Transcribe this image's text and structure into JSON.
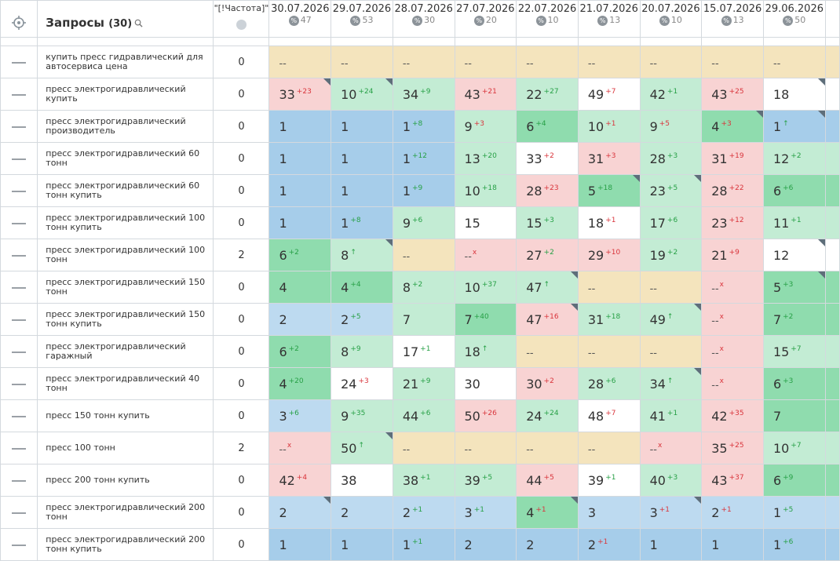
{
  "header": {
    "title": "Запросы",
    "count": "(30)",
    "freq_label": "\"[!Частота]\"",
    "dates": [
      {
        "date": "30.07.2026",
        "count": "47"
      },
      {
        "date": "29.07.2026",
        "count": "53"
      },
      {
        "date": "28.07.2026",
        "count": "30"
      },
      {
        "date": "27.07.2026",
        "count": "20"
      },
      {
        "date": "22.07.2026",
        "count": "10"
      },
      {
        "date": "21.07.2026",
        "count": "13"
      },
      {
        "date": "20.07.2026",
        "count": "10"
      },
      {
        "date": "15.07.2026",
        "count": "13"
      },
      {
        "date": "29.06.2026",
        "count": "50"
      }
    ],
    "percent_symbol": "%",
    "icons": {
      "target": "crosshair-icon",
      "search": "search-icon",
      "globe": "globe-icon",
      "percent": "percent-icon"
    }
  },
  "colors": {
    "blue": "#a6cdea",
    "light_blue": "#bddaf0",
    "green": "#8fdcae",
    "light_green": "#c3ecd4",
    "red": "#f8d3d3",
    "yellow": "#f4e4bd",
    "white": "#ffffff",
    "up": "#27a046",
    "down": "#d9353c"
  },
  "no_data": "--",
  "rows": [
    {
      "query": "купить пресс гидравлический для автосервиса цена",
      "freq": "0",
      "cells": [
        [
          "--",
          "",
          "",
          "yellow",
          0
        ],
        [
          "--",
          "",
          "",
          "yellow",
          0
        ],
        [
          "--",
          "",
          "",
          "yellow",
          0
        ],
        [
          "--",
          "",
          "",
          "yellow",
          0
        ],
        [
          "--",
          "",
          "",
          "yellow",
          0
        ],
        [
          "--",
          "",
          "",
          "yellow",
          0
        ],
        [
          "--",
          "",
          "",
          "yellow",
          0
        ],
        [
          "--",
          "",
          "",
          "yellow",
          0
        ],
        [
          "--",
          "",
          "",
          "yellow",
          0
        ]
      ]
    },
    {
      "query": "пресс электрогидравлический купить",
      "freq": "0",
      "cells": [
        [
          "33",
          "+23",
          "down",
          "red",
          1
        ],
        [
          "10",
          "+24",
          "up",
          "lgreen",
          1
        ],
        [
          "34",
          "+9",
          "up",
          "lgreen",
          0
        ],
        [
          "43",
          "+21",
          "down",
          "red",
          0
        ],
        [
          "22",
          "+27",
          "up",
          "lgreen",
          0
        ],
        [
          "49",
          "+7",
          "down",
          "white",
          0
        ],
        [
          "42",
          "+1",
          "up",
          "lgreen",
          0
        ],
        [
          "43",
          "+25",
          "down",
          "red",
          0
        ],
        [
          "18",
          "",
          "",
          "white",
          1
        ]
      ]
    },
    {
      "query": "пресс электрогидравлический производитель",
      "freq": "0",
      "cells": [
        [
          "1",
          "",
          "",
          "blue",
          0
        ],
        [
          "1",
          "",
          "",
          "blue",
          0
        ],
        [
          "1",
          "+8",
          "up",
          "blue",
          0
        ],
        [
          "9",
          "+3",
          "down",
          "lgreen",
          0
        ],
        [
          "6",
          "+4",
          "up",
          "green",
          0
        ],
        [
          "10",
          "+1",
          "down",
          "lgreen",
          0
        ],
        [
          "9",
          "+5",
          "down",
          "lgreen",
          0
        ],
        [
          "4",
          "+3",
          "down",
          "green",
          1
        ],
        [
          "1",
          "↑",
          "up",
          "blue",
          1
        ]
      ]
    },
    {
      "query": "пресс электрогидравлический 60 тонн",
      "freq": "0",
      "cells": [
        [
          "1",
          "",
          "",
          "blue",
          0
        ],
        [
          "1",
          "",
          "",
          "blue",
          0
        ],
        [
          "1",
          "+12",
          "up",
          "blue",
          0
        ],
        [
          "13",
          "+20",
          "up",
          "lgreen",
          0
        ],
        [
          "33",
          "+2",
          "down",
          "white",
          0
        ],
        [
          "31",
          "+3",
          "down",
          "red",
          0
        ],
        [
          "28",
          "+3",
          "up",
          "lgreen",
          0
        ],
        [
          "31",
          "+19",
          "down",
          "red",
          0
        ],
        [
          "12",
          "+2",
          "up",
          "lgreen",
          0
        ]
      ]
    },
    {
      "query": "пресс электрогидравлический 60 тонн купить",
      "freq": "0",
      "cells": [
        [
          "1",
          "",
          "",
          "blue",
          0
        ],
        [
          "1",
          "",
          "",
          "blue",
          0
        ],
        [
          "1",
          "+9",
          "up",
          "blue",
          0
        ],
        [
          "10",
          "+18",
          "up",
          "lgreen",
          0
        ],
        [
          "28",
          "+23",
          "down",
          "red",
          0
        ],
        [
          "5",
          "+18",
          "up",
          "green",
          1
        ],
        [
          "23",
          "+5",
          "up",
          "lgreen",
          1
        ],
        [
          "28",
          "+22",
          "down",
          "red",
          0
        ],
        [
          "6",
          "+6",
          "up",
          "green",
          0
        ]
      ]
    },
    {
      "query": "пресс электрогидравлический 100 тонн купить",
      "freq": "0",
      "cells": [
        [
          "1",
          "",
          "",
          "blue",
          0
        ],
        [
          "1",
          "+8",
          "up",
          "blue",
          0
        ],
        [
          "9",
          "+6",
          "up",
          "lgreen",
          0
        ],
        [
          "15",
          "",
          "",
          "white",
          0
        ],
        [
          "15",
          "+3",
          "up",
          "lgreen",
          0
        ],
        [
          "18",
          "+1",
          "down",
          "white",
          0
        ],
        [
          "17",
          "+6",
          "up",
          "lgreen",
          0
        ],
        [
          "23",
          "+12",
          "down",
          "red",
          0
        ],
        [
          "11",
          "+1",
          "up",
          "lgreen",
          0
        ]
      ]
    },
    {
      "query": "пресс электрогидравлический 100 тонн",
      "freq": "2",
      "cells": [
        [
          "6",
          "+2",
          "up",
          "green",
          0
        ],
        [
          "8",
          "↑",
          "up",
          "lgreen",
          1
        ],
        [
          "--",
          "",
          "",
          "yellow",
          0
        ],
        [
          "--",
          "x",
          "down",
          "red",
          0
        ],
        [
          "27",
          "+2",
          "up",
          "red",
          0
        ],
        [
          "29",
          "+10",
          "down",
          "red",
          0
        ],
        [
          "19",
          "+2",
          "up",
          "lgreen",
          0
        ],
        [
          "21",
          "+9",
          "down",
          "red",
          0
        ],
        [
          "12",
          "",
          "",
          "white",
          1
        ]
      ]
    },
    {
      "query": "пресс электрогидравлический 150 тонн",
      "freq": "0",
      "cells": [
        [
          "4",
          "",
          "",
          "green",
          0
        ],
        [
          "4",
          "+4",
          "up",
          "green",
          0
        ],
        [
          "8",
          "+2",
          "up",
          "lgreen",
          0
        ],
        [
          "10",
          "+37",
          "up",
          "lgreen",
          0
        ],
        [
          "47",
          "↑",
          "up",
          "lgreen",
          1
        ],
        [
          "--",
          "",
          "",
          "yellow",
          0
        ],
        [
          "--",
          "",
          "",
          "yellow",
          0
        ],
        [
          "--",
          "x",
          "down",
          "red",
          0
        ],
        [
          "5",
          "+3",
          "up",
          "green",
          1
        ]
      ]
    },
    {
      "query": "пресс электрогидравлический 150 тонн купить",
      "freq": "0",
      "cells": [
        [
          "2",
          "",
          "",
          "lblue",
          0
        ],
        [
          "2",
          "+5",
          "up",
          "lblue",
          0
        ],
        [
          "7",
          "",
          "",
          "lgreen",
          0
        ],
        [
          "7",
          "+40",
          "up",
          "green",
          0
        ],
        [
          "47",
          "+16",
          "down",
          "red",
          1
        ],
        [
          "31",
          "+18",
          "up",
          "lgreen",
          0
        ],
        [
          "49",
          "↑",
          "up",
          "lgreen",
          1
        ],
        [
          "--",
          "x",
          "down",
          "red",
          0
        ],
        [
          "7",
          "+2",
          "up",
          "green",
          0
        ]
      ]
    },
    {
      "query": "пресс электрогидравлический гаражный",
      "freq": "0",
      "cells": [
        [
          "6",
          "+2",
          "up",
          "green",
          0
        ],
        [
          "8",
          "+9",
          "up",
          "lgreen",
          0
        ],
        [
          "17",
          "+1",
          "up",
          "white",
          0
        ],
        [
          "18",
          "↑",
          "up",
          "lgreen",
          0
        ],
        [
          "--",
          "",
          "",
          "yellow",
          0
        ],
        [
          "--",
          "",
          "",
          "yellow",
          0
        ],
        [
          "--",
          "",
          "",
          "yellow",
          0
        ],
        [
          "--",
          "x",
          "down",
          "red",
          0
        ],
        [
          "15",
          "+7",
          "up",
          "lgreen",
          0
        ]
      ]
    },
    {
      "query": "пресс электрогидравлический 40 тонн",
      "freq": "0",
      "cells": [
        [
          "4",
          "+20",
          "up",
          "green",
          0
        ],
        [
          "24",
          "+3",
          "down",
          "white",
          0
        ],
        [
          "21",
          "+9",
          "up",
          "lgreen",
          0
        ],
        [
          "30",
          "",
          "",
          "white",
          0
        ],
        [
          "30",
          "+2",
          "down",
          "red",
          0
        ],
        [
          "28",
          "+6",
          "up",
          "lgreen",
          0
        ],
        [
          "34",
          "↑",
          "up",
          "lgreen",
          1
        ],
        [
          "--",
          "x",
          "down",
          "red",
          0
        ],
        [
          "6",
          "+3",
          "up",
          "green",
          0
        ]
      ]
    },
    {
      "query": "пресс 150 тонн купить",
      "freq": "0",
      "cells": [
        [
          "3",
          "+6",
          "up",
          "lblue",
          0
        ],
        [
          "9",
          "+35",
          "up",
          "lgreen",
          0
        ],
        [
          "44",
          "+6",
          "up",
          "lgreen",
          0
        ],
        [
          "50",
          "+26",
          "down",
          "red",
          0
        ],
        [
          "24",
          "+24",
          "up",
          "lgreen",
          0
        ],
        [
          "48",
          "+7",
          "down",
          "white",
          0
        ],
        [
          "41",
          "+1",
          "up",
          "lgreen",
          0
        ],
        [
          "42",
          "+35",
          "down",
          "red",
          0
        ],
        [
          "7",
          "",
          "",
          "green",
          0
        ]
      ]
    },
    {
      "query": "пресс 100 тонн",
      "freq": "2",
      "cells": [
        [
          "--",
          "x",
          "down",
          "red",
          0
        ],
        [
          "50",
          "↑",
          "up",
          "lgreen",
          1
        ],
        [
          "--",
          "",
          "",
          "yellow",
          0
        ],
        [
          "--",
          "",
          "",
          "yellow",
          0
        ],
        [
          "--",
          "",
          "",
          "yellow",
          0
        ],
        [
          "--",
          "",
          "",
          "yellow",
          0
        ],
        [
          "--",
          "x",
          "down",
          "red",
          0
        ],
        [
          "35",
          "+25",
          "down",
          "red",
          0
        ],
        [
          "10",
          "+7",
          "up",
          "lgreen",
          0
        ]
      ]
    },
    {
      "query": "пресс 200 тонн купить",
      "freq": "0",
      "cells": [
        [
          "42",
          "+4",
          "down",
          "red",
          0
        ],
        [
          "38",
          "",
          "",
          "white",
          0
        ],
        [
          "38",
          "+1",
          "up",
          "lgreen",
          0
        ],
        [
          "39",
          "+5",
          "up",
          "lgreen",
          0
        ],
        [
          "44",
          "+5",
          "down",
          "red",
          0
        ],
        [
          "39",
          "+1",
          "up",
          "white",
          0
        ],
        [
          "40",
          "+3",
          "up",
          "lgreen",
          0
        ],
        [
          "43",
          "+37",
          "down",
          "red",
          0
        ],
        [
          "6",
          "+9",
          "up",
          "green",
          0
        ]
      ]
    },
    {
      "query": "пресс электрогидравлический 200 тонн",
      "freq": "0",
      "cells": [
        [
          "2",
          "",
          "",
          "lblue",
          1
        ],
        [
          "2",
          "",
          "",
          "lblue",
          0
        ],
        [
          "2",
          "+1",
          "up",
          "lblue",
          0
        ],
        [
          "3",
          "+1",
          "up",
          "lblue",
          0
        ],
        [
          "4",
          "+1",
          "down",
          "green",
          1
        ],
        [
          "3",
          "",
          "",
          "lblue",
          0
        ],
        [
          "3",
          "+1",
          "down",
          "lblue",
          1
        ],
        [
          "2",
          "+1",
          "down",
          "lblue",
          0
        ],
        [
          "1",
          "+5",
          "up",
          "lblue",
          0
        ]
      ]
    },
    {
      "query": "пресс электрогидравлический 200 тонн купить",
      "freq": "0",
      "cells": [
        [
          "1",
          "",
          "",
          "blue",
          0
        ],
        [
          "1",
          "",
          "",
          "blue",
          0
        ],
        [
          "1",
          "+1",
          "up",
          "blue",
          0
        ],
        [
          "2",
          "",
          "",
          "blue",
          0
        ],
        [
          "2",
          "",
          "",
          "blue",
          0
        ],
        [
          "2",
          "+1",
          "down",
          "blue",
          0
        ],
        [
          "1",
          "",
          "",
          "blue",
          0
        ],
        [
          "1",
          "",
          "",
          "blue",
          0
        ],
        [
          "1",
          "+6",
          "up",
          "blue",
          0
        ]
      ]
    }
  ]
}
